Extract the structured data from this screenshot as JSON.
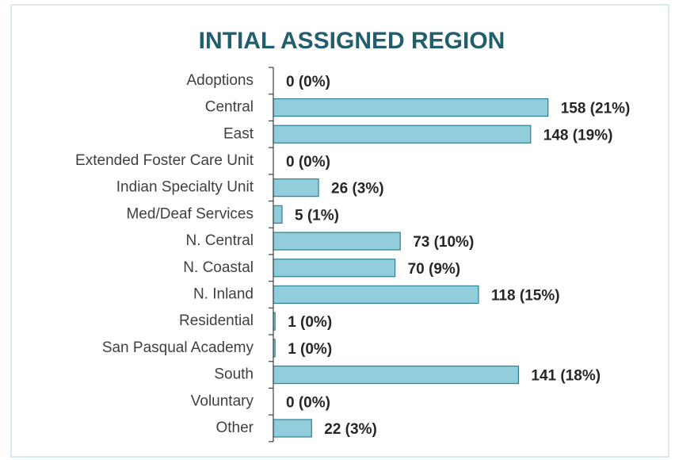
{
  "chart_data": {
    "type": "barh",
    "title": "INTIAL ASSIGNED REGION",
    "categories": [
      "Adoptions",
      "Central",
      "East",
      "Extended Foster Care Unit",
      "Indian Specialty Unit",
      "Med/Deaf Services",
      "N. Central",
      "N. Coastal",
      "N. Inland",
      "Residential",
      "San Pasqual Academy",
      "South",
      "Voluntary",
      "Other"
    ],
    "values": [
      0,
      158,
      148,
      0,
      26,
      5,
      73,
      70,
      118,
      1,
      1,
      141,
      0,
      22
    ],
    "value_labels": [
      "0 (0%)",
      "158 (21%)",
      "148 (19%)",
      "0 (0%)",
      "26 (3%)",
      "5 (1%)",
      "73 (10%)",
      "70 (9%)",
      "118 (15%)",
      "1 (0%)",
      "1 (0%)",
      "141 (18%)",
      "0 (0%)",
      "22 (3%)"
    ],
    "color": "#92cddc",
    "xlim": [
      0,
      180
    ]
  }
}
